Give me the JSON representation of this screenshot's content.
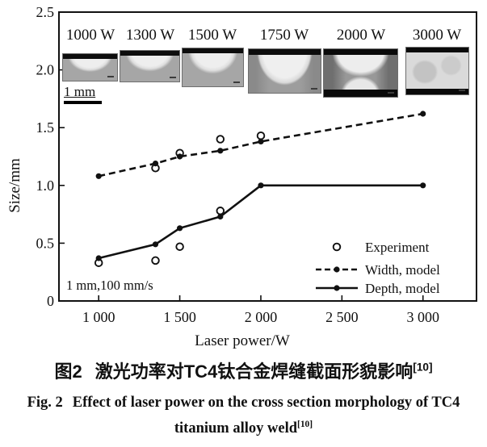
{
  "figure": {
    "caption_zh": {
      "label": "图2",
      "text": "激光功率对TC4钛合金焊缝截面形貌影响",
      "sup": "[10]"
    },
    "caption_en": {
      "label": "Fig. 2",
      "line1": "Effect of laser power on the cross section morphology of TC4",
      "line2": "titanium alloy weld",
      "sup": "[10]"
    }
  },
  "chart_data": {
    "type": "line",
    "title": "",
    "xlabel": "Laser power/W",
    "ylabel": "Size/mm",
    "xlim": [
      755,
      3330
    ],
    "ylim": [
      0,
      2.5
    ],
    "grid": false,
    "xticks": {
      "values": [
        1000,
        1500,
        2000,
        2500,
        3000
      ],
      "labels": [
        "1 000",
        "1 500",
        "2 000",
        "2 500",
        "3 000"
      ]
    },
    "yticks": {
      "values": [
        0,
        0.5,
        1.0,
        1.5,
        2.0,
        2.5
      ],
      "labels": [
        "0",
        "0.5",
        "1.0",
        "1.5",
        "2.0",
        "2.5"
      ]
    },
    "annotation": "1 mm,100 mm/s",
    "series": [
      {
        "name": "Experiment",
        "type": "scatter",
        "marker": "open-circle",
        "points": [
          [
            1000,
            0.33
          ],
          [
            1350,
            0.35
          ],
          [
            1500,
            0.47
          ],
          [
            1750,
            0.78
          ],
          [
            1350,
            1.15
          ],
          [
            1500,
            1.28
          ],
          [
            1750,
            1.4
          ],
          [
            2000,
            1.43
          ]
        ]
      },
      {
        "name": "Width, model",
        "type": "line",
        "style": "dashed",
        "marker": "filled-circle",
        "points": [
          [
            1000,
            1.08
          ],
          [
            1350,
            1.19
          ],
          [
            1500,
            1.25
          ],
          [
            1750,
            1.3
          ],
          [
            2000,
            1.38
          ],
          [
            3000,
            1.62
          ]
        ]
      },
      {
        "name": "Depth, model",
        "type": "line",
        "style": "solid",
        "marker": "filled-circle",
        "points": [
          [
            1000,
            0.37
          ],
          [
            1350,
            0.49
          ],
          [
            1500,
            0.63
          ],
          [
            1750,
            0.73
          ],
          [
            2000,
            1.0
          ],
          [
            3000,
            1.0
          ]
        ]
      }
    ],
    "legend": {
      "position": "lower right",
      "entries": [
        "Experiment",
        "Width, model",
        "Depth, model"
      ]
    },
    "insets": {
      "scale_bar": "1 mm",
      "labels": [
        "1000 W",
        "1300 W",
        "1500 W",
        "1750 W",
        "2000 W",
        "3000 W"
      ]
    },
    "colors": {
      "line": "#111111",
      "background": "#ffffff"
    }
  }
}
